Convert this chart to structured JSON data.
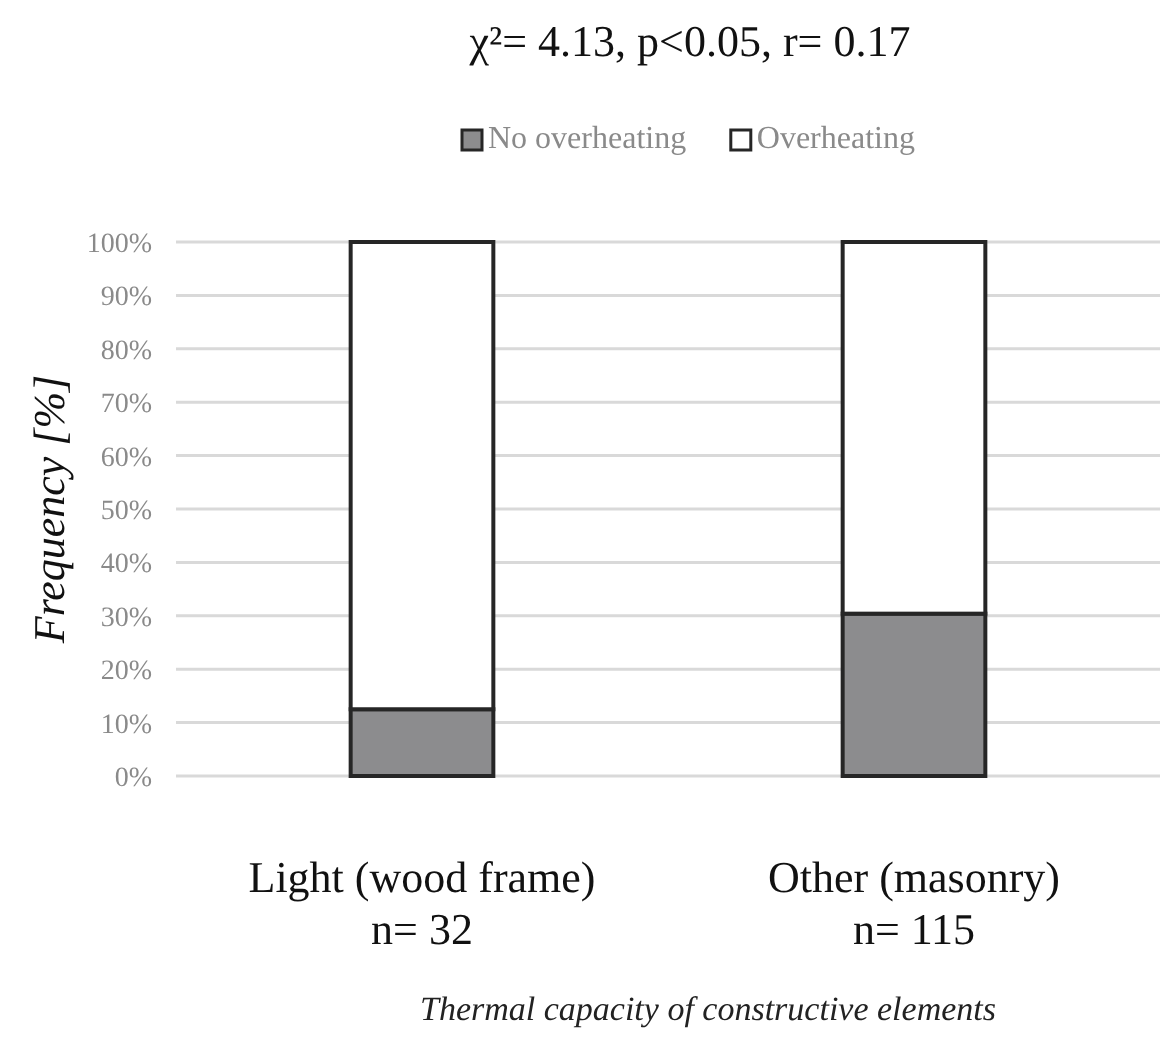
{
  "chart_data": {
    "type": "bar",
    "title": "χ²= 4.13, p<0.05, r= 0.17",
    "xlabel": "Thermal capacity of constructive elements",
    "ylabel": "Frequency [%]",
    "categories": [
      "Light (wood frame)\nn= 32",
      "Other (masonry)\nn= 115"
    ],
    "stacked": true,
    "series": [
      {
        "name": "No overheating",
        "color": "#8c8c8e",
        "values": [
          12.5,
          30.4
        ]
      },
      {
        "name": "Overheating",
        "color": "#ffffff",
        "values": [
          87.5,
          69.6
        ]
      }
    ],
    "ylim": [
      0,
      100
    ],
    "yticks": [
      {
        "value": 0,
        "label": "0%"
      },
      {
        "value": 10,
        "label": "10%"
      },
      {
        "value": 20,
        "label": "20%"
      },
      {
        "value": 30,
        "label": "30%"
      },
      {
        "value": 40,
        "label": "40%"
      },
      {
        "value": 50,
        "label": "50%"
      },
      {
        "value": 60,
        "label": "60%"
      },
      {
        "value": 70,
        "label": "70%"
      },
      {
        "value": 80,
        "label": "80%"
      },
      {
        "value": 90,
        "label": "90%"
      },
      {
        "value": 100,
        "label": "100%"
      }
    ],
    "grid": "y",
    "legend": "top"
  }
}
